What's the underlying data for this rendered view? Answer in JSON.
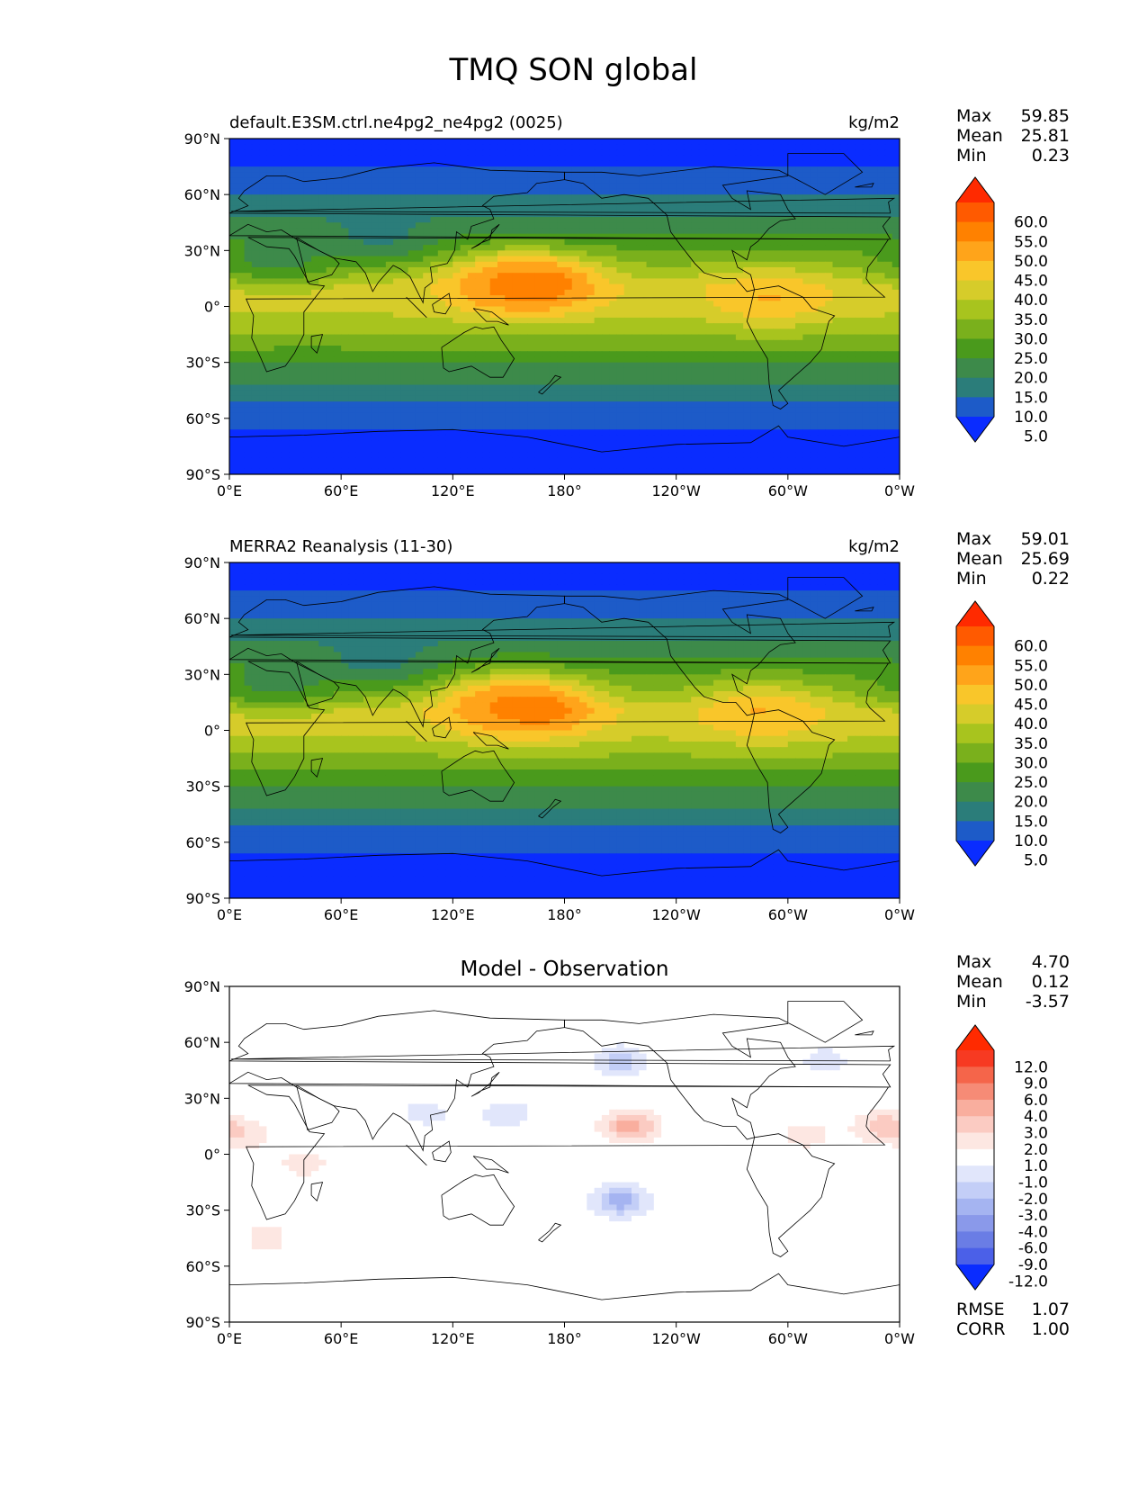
{
  "figure": {
    "title": "TMQ SON global"
  },
  "panels": [
    {
      "title_left": "default.E3SM.ctrl.ne4pg2_ne4pg2 (0025)",
      "title_right": "kg/m2",
      "stats": [
        {
          "k": "Max",
          "v": "59.85"
        },
        {
          "k": "Mean",
          "v": "25.81"
        },
        {
          "k": "Min",
          "v": "0.23"
        }
      ]
    },
    {
      "title_left": "MERRA2 Reanalysis (11-30)",
      "title_right": "kg/m2",
      "stats": [
        {
          "k": "Max",
          "v": "59.01"
        },
        {
          "k": "Mean",
          "v": "25.69"
        },
        {
          "k": "Min",
          "v": "0.22"
        }
      ]
    },
    {
      "title_center": "Model - Observation",
      "stats": [
        {
          "k": "Max",
          "v": "4.70"
        },
        {
          "k": "Mean",
          "v": "0.12"
        },
        {
          "k": "Min",
          "v": "-3.57"
        }
      ],
      "metrics": [
        {
          "k": "RMSE",
          "v": "1.07"
        },
        {
          "k": "CORR",
          "v": "1.00"
        }
      ]
    }
  ],
  "chart_data": [
    {
      "type": "heatmap",
      "subtype": "filled-contour-map",
      "title": "default.E3SM.ctrl.ne4pg2_ne4pg2 (0025)",
      "units": "kg/m2",
      "x_ticks": [
        "0°E",
        "60°E",
        "120°E",
        "180°",
        "120°W",
        "60°W",
        "0°W"
      ],
      "y_ticks": [
        "90°N",
        "60°N",
        "30°N",
        "0°",
        "30°S",
        "60°S",
        "90°S"
      ],
      "xlim": [
        0,
        360
      ],
      "ylim": [
        -90,
        90
      ],
      "colorbar": {
        "labels": [
          "60.0",
          "55.0",
          "50.0",
          "45.0",
          "40.0",
          "35.0",
          "30.0",
          "25.0",
          "20.0",
          "15.0",
          "10.0",
          "5.0"
        ],
        "colors": [
          "#ff2a00",
          "#ff5a00",
          "#ff8100",
          "#ffa41a",
          "#f9c62a",
          "#d6cc2a",
          "#a8c41e",
          "#7ab01c",
          "#4a9a1c",
          "#3d8a4a",
          "#2b7d7a",
          "#1d5bc8",
          "#0a2cff"
        ]
      },
      "zonal_bands": [
        {
          "lat": -90,
          "value": 2
        },
        {
          "lat": -70,
          "value": 4
        },
        {
          "lat": -55,
          "value": 8
        },
        {
          "lat": -45,
          "value": 13
        },
        {
          "lat": -30,
          "value": 20
        },
        {
          "lat": -15,
          "value": 30
        },
        {
          "lat": 0,
          "value": 37
        },
        {
          "lat": 10,
          "value": 38
        },
        {
          "lat": 20,
          "value": 31
        },
        {
          "lat": 35,
          "value": 22
        },
        {
          "lat": 50,
          "value": 14
        },
        {
          "lat": 65,
          "value": 8
        },
        {
          "lat": 80,
          "value": 4
        },
        {
          "lat": 90,
          "value": 2
        }
      ],
      "features": [
        {
          "lon": 165,
          "lat": 12,
          "value": 57
        },
        {
          "lon": 150,
          "lat": 12,
          "value": 51
        },
        {
          "lon": 290,
          "lat": 5,
          "value": 46
        },
        {
          "lon": 25,
          "lat": 25,
          "value": 17
        },
        {
          "lon": 80,
          "lat": 38,
          "value": 13
        }
      ],
      "stats": {
        "max": 59.85,
        "mean": 25.81,
        "min": 0.23
      }
    },
    {
      "type": "heatmap",
      "subtype": "filled-contour-map",
      "title": "MERRA2 Reanalysis (11-30)",
      "units": "kg/m2",
      "x_ticks": [
        "0°E",
        "60°E",
        "120°E",
        "180°",
        "120°W",
        "60°W",
        "0°W"
      ],
      "y_ticks": [
        "90°N",
        "60°N",
        "30°N",
        "0°",
        "30°S",
        "60°S",
        "90°S"
      ],
      "xlim": [
        0,
        360
      ],
      "ylim": [
        -90,
        90
      ],
      "colorbar": {
        "labels": [
          "60.0",
          "55.0",
          "50.0",
          "45.0",
          "40.0",
          "35.0",
          "30.0",
          "25.0",
          "20.0",
          "15.0",
          "10.0",
          "5.0"
        ],
        "colors": [
          "#ff2a00",
          "#ff5a00",
          "#ff8100",
          "#ffa41a",
          "#f9c62a",
          "#d6cc2a",
          "#a8c41e",
          "#7ab01c",
          "#4a9a1c",
          "#3d8a4a",
          "#2b7d7a",
          "#1d5bc8",
          "#0a2cff"
        ]
      },
      "zonal_bands": [
        {
          "lat": -90,
          "value": 2
        },
        {
          "lat": -70,
          "value": 4
        },
        {
          "lat": -55,
          "value": 8
        },
        {
          "lat": -45,
          "value": 13
        },
        {
          "lat": -30,
          "value": 20
        },
        {
          "lat": -15,
          "value": 29
        },
        {
          "lat": 0,
          "value": 37
        },
        {
          "lat": 10,
          "value": 38
        },
        {
          "lat": 20,
          "value": 30
        },
        {
          "lat": 35,
          "value": 22
        },
        {
          "lat": 50,
          "value": 14
        },
        {
          "lat": 65,
          "value": 8
        },
        {
          "lat": 80,
          "value": 4
        },
        {
          "lat": 90,
          "value": 2
        }
      ],
      "features": [
        {
          "lon": 165,
          "lat": 12,
          "value": 56
        },
        {
          "lon": 145,
          "lat": 14,
          "value": 51
        },
        {
          "lon": 285,
          "lat": 10,
          "value": 46
        },
        {
          "lon": 25,
          "lat": 25,
          "value": 17
        },
        {
          "lon": 80,
          "lat": 38,
          "value": 12
        }
      ],
      "stats": {
        "max": 59.01,
        "mean": 25.69,
        "min": 0.22
      }
    },
    {
      "type": "heatmap",
      "subtype": "filled-contour-map",
      "title": "Model - Observation",
      "x_ticks": [
        "0°E",
        "60°E",
        "120°E",
        "180°",
        "120°W",
        "60°W",
        "0°W"
      ],
      "y_ticks": [
        "90°N",
        "60°N",
        "30°N",
        "0°",
        "30°S",
        "60°S",
        "90°S"
      ],
      "xlim": [
        0,
        360
      ],
      "ylim": [
        -90,
        90
      ],
      "colorbar": {
        "labels": [
          "12.0",
          "9.0",
          "6.0",
          "4.0",
          "3.0",
          "2.0",
          "1.0",
          "-1.0",
          "-2.0",
          "-3.0",
          "-4.0",
          "-6.0",
          "-9.0",
          "-12.0"
        ],
        "colors": [
          "#ff2a00",
          "#f73a22",
          "#f5654a",
          "#f68b76",
          "#f9ae9e",
          "#fbcbc2",
          "#fde7e2",
          "#ffffff",
          "#e1e6fb",
          "#c3cef7",
          "#a5b4f1",
          "#8a99ea",
          "#6a7de5",
          "#4b60e8",
          "#0a2cff"
        ]
      },
      "anomalies": [
        {
          "lon": 10,
          "lat": 10,
          "value": 1.5
        },
        {
          "lon": 40,
          "lat": -5,
          "value": 1.5
        },
        {
          "lon": 165,
          "lat": 15,
          "value": 1.5
        },
        {
          "lon": 215,
          "lat": 15,
          "value": 3.5
        },
        {
          "lon": 350,
          "lat": 15,
          "value": 2.5
        },
        {
          "lon": 310,
          "lat": 10,
          "value": 1.5
        },
        {
          "lon": 152,
          "lat": 20,
          "value": -2.5
        },
        {
          "lon": 105,
          "lat": 22,
          "value": -1.5
        },
        {
          "lon": 210,
          "lat": -25,
          "value": -3.5
        },
        {
          "lon": 210,
          "lat": 50,
          "value": -2.5
        },
        {
          "lon": 320,
          "lat": 50,
          "value": -1.5
        },
        {
          "lon": 20,
          "lat": -45,
          "value": 1.5
        }
      ],
      "stats": {
        "max": 4.7,
        "mean": 0.12,
        "min": -3.57,
        "rmse": 1.07,
        "corr": 1.0
      }
    }
  ]
}
